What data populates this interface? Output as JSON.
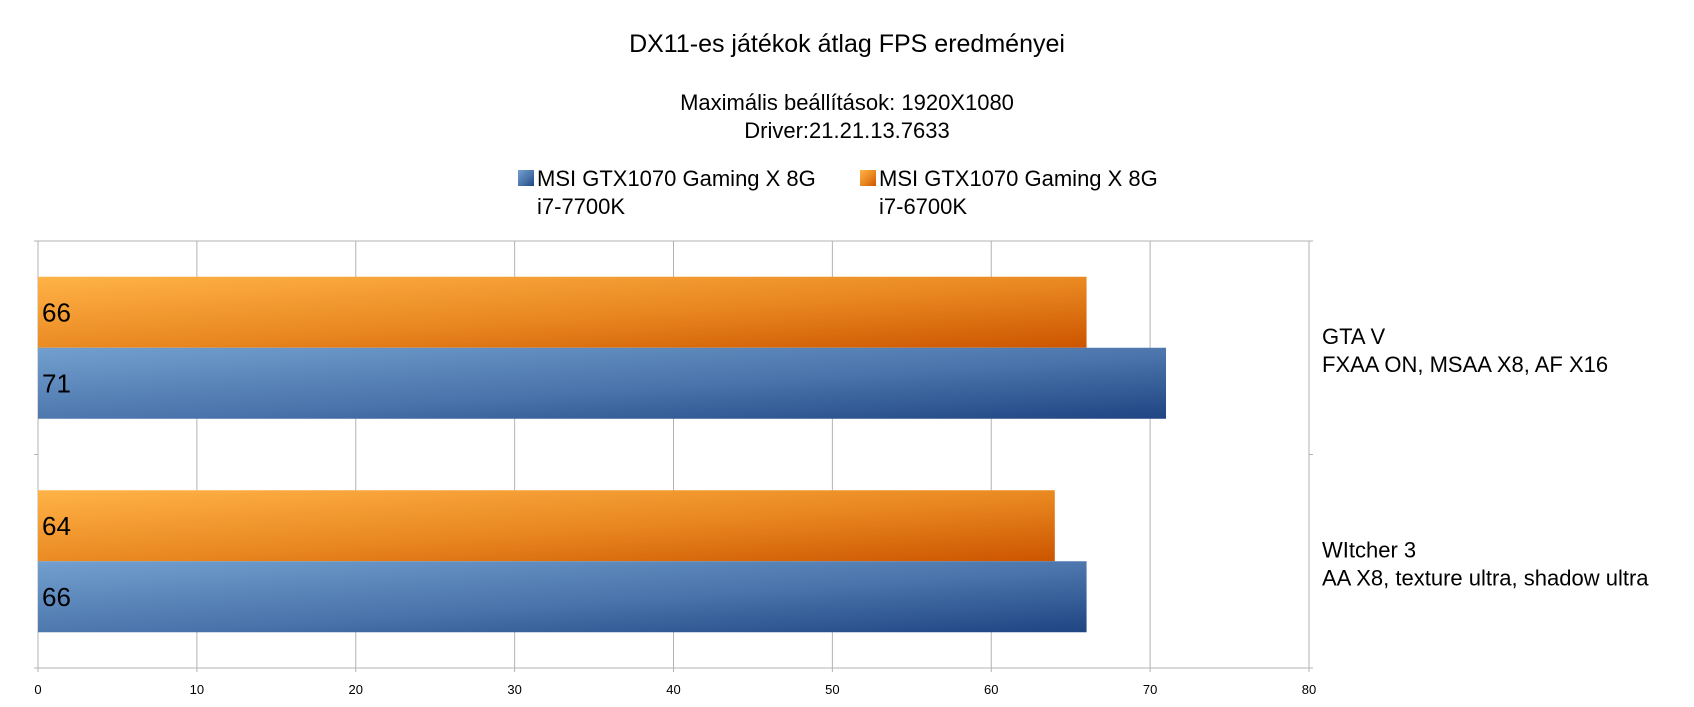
{
  "chart_data": {
    "type": "bar",
    "orientation": "horizontal",
    "title": "DX11-es játékok átlag FPS eredményei",
    "subtitle_lines": [
      "Maximális beállítások: 1920X1080",
      "Driver:21.21.13.7633"
    ],
    "categories": [
      [
        "GTA V",
        "FXAA ON, MSAA X8, AF X16"
      ],
      [
        "WItcher 3",
        "AA X8, texture ultra, shadow ultra"
      ]
    ],
    "series": [
      {
        "name_lines": [
          "MSI GTX1070 Gaming X 8G",
          "i7-6700K"
        ],
        "color": "#e1700f",
        "values": [
          66,
          64
        ]
      },
      {
        "name_lines": [
          "MSI GTX1070 Gaming X 8G",
          "i7-7700K"
        ],
        "color": "#3c6aa8",
        "values": [
          71,
          66
        ]
      }
    ],
    "legend": {
      "position": "top",
      "order": [
        1,
        0
      ]
    },
    "xlim": [
      0,
      80
    ],
    "xticks": [
      0,
      10,
      20,
      30,
      40,
      50,
      60,
      70,
      80
    ],
    "grid": true,
    "data_labels": true
  }
}
